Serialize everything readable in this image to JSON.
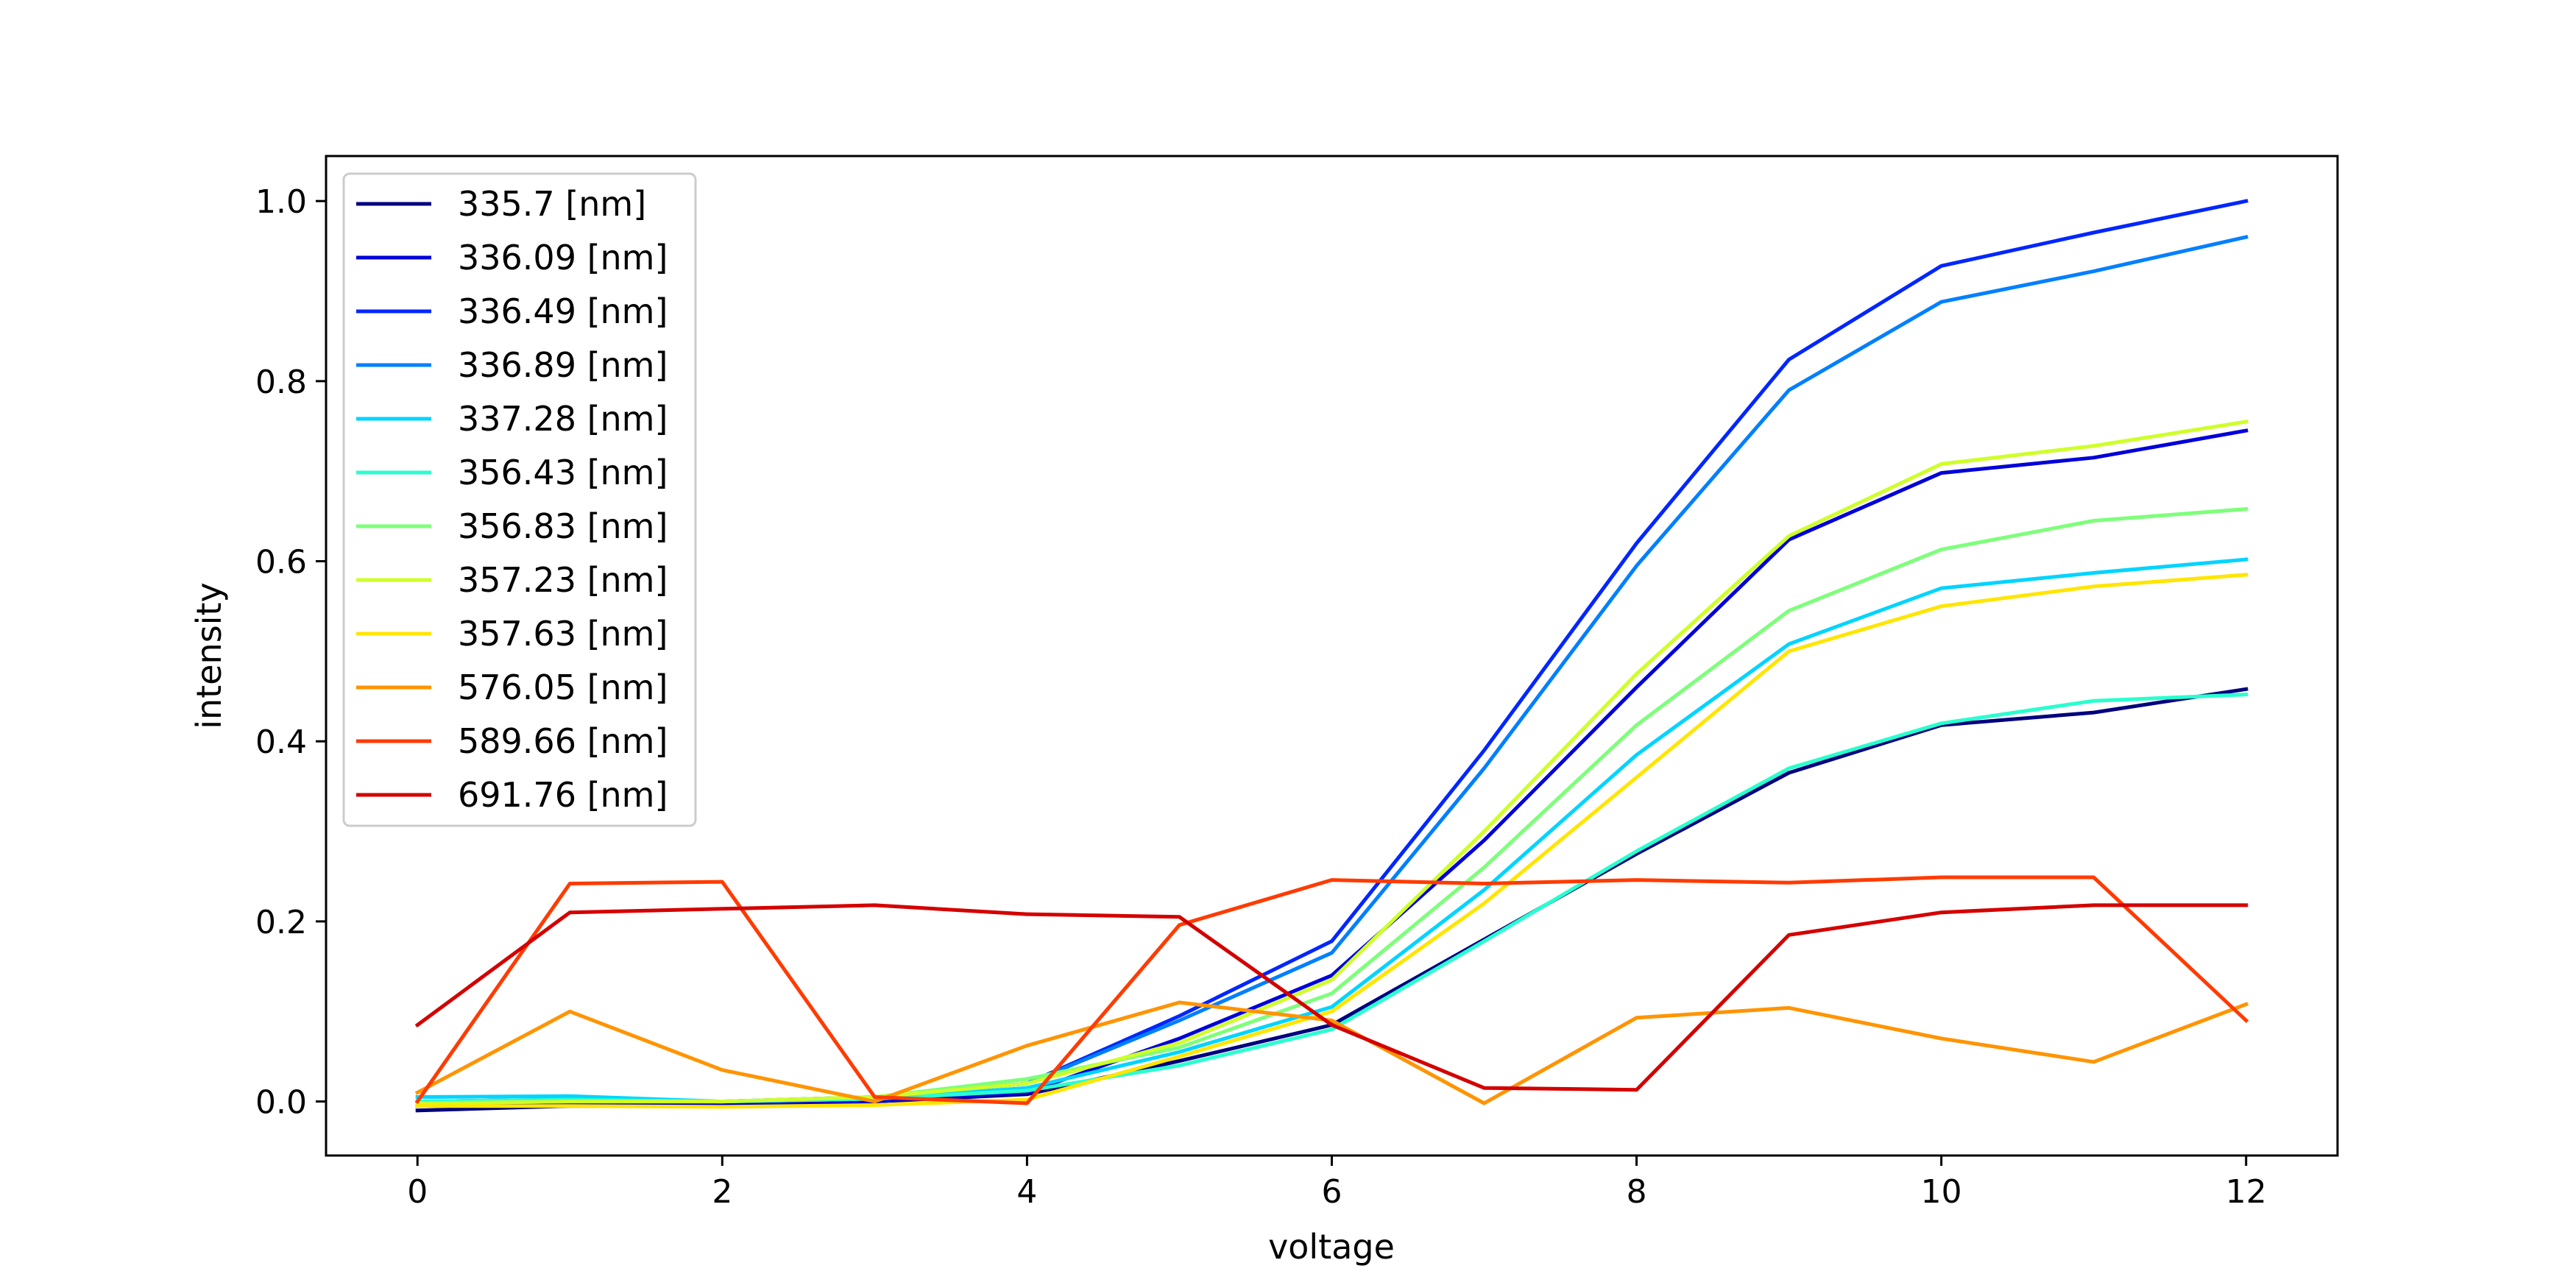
{
  "chart_data": {
    "type": "line",
    "title": "",
    "xlabel": "voltage",
    "ylabel": "intensity",
    "xlim": [
      -0.6,
      12.6
    ],
    "ylim": [
      -0.06,
      1.05
    ],
    "x_ticks": [
      0,
      2,
      4,
      6,
      8,
      10,
      12
    ],
    "y_ticks": [
      0.0,
      0.2,
      0.4,
      0.6,
      0.8,
      1.0
    ],
    "x_tick_labels": [
      "0",
      "2",
      "4",
      "6",
      "8",
      "10",
      "12"
    ],
    "y_tick_labels": [
      "0.0",
      "0.2",
      "0.4",
      "0.6",
      "0.8",
      "1.0"
    ],
    "grid": false,
    "legend_position": "upper-left",
    "x": [
      0,
      1,
      2,
      3,
      4,
      5,
      6,
      7,
      8,
      9,
      10,
      11,
      12
    ],
    "series": [
      {
        "name": "335.7 [nm]",
        "color": "#00007f",
        "values": [
          -0.01,
          -0.005,
          -0.005,
          0.0,
          0.008,
          0.045,
          0.085,
          0.18,
          0.275,
          0.365,
          0.418,
          0.432,
          0.458
        ]
      },
      {
        "name": "336.09 [nm]",
        "color": "#0000d9",
        "values": [
          -0.005,
          -0.002,
          -0.003,
          0.0,
          0.01,
          0.07,
          0.14,
          0.29,
          0.46,
          0.624,
          0.698,
          0.715,
          0.745
        ]
      },
      {
        "name": "336.49 [nm]",
        "color": "#0026ff",
        "values": [
          0.0,
          0.002,
          0.0,
          0.005,
          0.02,
          0.095,
          0.178,
          0.39,
          0.62,
          0.824,
          0.928,
          0.965,
          1.0
        ]
      },
      {
        "name": "336.89 [nm]",
        "color": "#0080ff",
        "values": [
          0.0,
          0.002,
          0.0,
          0.005,
          0.02,
          0.09,
          0.165,
          0.37,
          0.595,
          0.79,
          0.888,
          0.922,
          0.96
        ]
      },
      {
        "name": "337.28 [nm]",
        "color": "#00d4ff",
        "values": [
          0.005,
          0.006,
          0.0,
          0.003,
          0.015,
          0.055,
          0.105,
          0.235,
          0.385,
          0.508,
          0.57,
          0.587,
          0.602
        ]
      },
      {
        "name": "356.43 [nm]",
        "color": "#29ffce",
        "values": [
          0.0,
          0.002,
          0.0,
          0.003,
          0.012,
          0.04,
          0.08,
          0.178,
          0.278,
          0.37,
          0.42,
          0.445,
          0.452
        ]
      },
      {
        "name": "356.83 [nm]",
        "color": "#7dff7a",
        "values": [
          -0.002,
          0.0,
          0.0,
          0.005,
          0.025,
          0.06,
          0.12,
          0.26,
          0.418,
          0.545,
          0.613,
          0.645,
          0.658
        ]
      },
      {
        "name": "357.23 [nm]",
        "color": "#ceff29",
        "values": [
          -0.002,
          0.0,
          0.0,
          0.005,
          0.02,
          0.065,
          0.135,
          0.3,
          0.475,
          0.628,
          0.708,
          0.728,
          0.755
        ]
      },
      {
        "name": "357.63 [nm]",
        "color": "#ffe500",
        "values": [
          -0.005,
          -0.005,
          -0.006,
          -0.004,
          0.002,
          0.05,
          0.1,
          0.22,
          0.36,
          0.5,
          0.55,
          0.572,
          0.585
        ]
      },
      {
        "name": "576.05 [nm]",
        "color": "#ff9400",
        "values": [
          0.01,
          0.1,
          0.035,
          0.0,
          0.062,
          0.11,
          0.09,
          -0.002,
          0.093,
          0.104,
          0.07,
          0.044,
          0.108
        ]
      },
      {
        "name": "589.66 [nm]",
        "color": "#ff3b00",
        "values": [
          0.0,
          0.242,
          0.244,
          0.005,
          -0.002,
          0.196,
          0.246,
          0.242,
          0.246,
          0.243,
          0.249,
          0.249,
          0.09
        ]
      },
      {
        "name": "691.76 [nm]",
        "color": "#d40000",
        "values": [
          0.085,
          0.21,
          0.214,
          0.218,
          0.208,
          0.205,
          0.085,
          0.015,
          0.013,
          0.185,
          0.21,
          0.218,
          0.218
        ]
      }
    ]
  }
}
